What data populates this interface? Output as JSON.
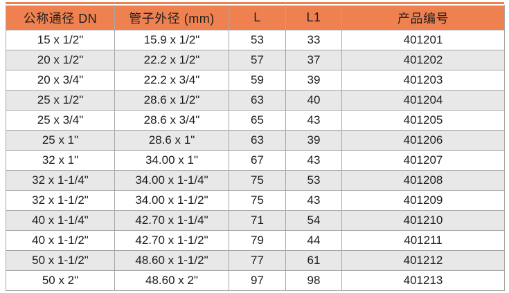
{
  "table": {
    "title_semantic": "pipe-fitting-spec-table",
    "columns": [
      "公称通径 DN",
      "管子外径 (mm)",
      "L",
      "L1",
      "产品编号"
    ],
    "rows": [
      [
        "15 x 1/2\"",
        "15.9 x 1/2\"",
        "53",
        "33",
        "401201"
      ],
      [
        "20 x 1/2\"",
        "22.2 x 1/2\"",
        "57",
        "37",
        "401202"
      ],
      [
        "20 x 3/4\"",
        "22.2 x 3/4\"",
        "59",
        "39",
        "401203"
      ],
      [
        "25 x 1/2\"",
        "28.6 x 1/2\"",
        "63",
        "40",
        "401204"
      ],
      [
        "25 x 3/4\"",
        "28.6 x 3/4\"",
        "65",
        "43",
        "401205"
      ],
      [
        "25 x 1\"",
        "28.6 x 1\"",
        "63",
        "39",
        "401206"
      ],
      [
        "32 x 1\"",
        "34.00 x 1\"",
        "67",
        "43",
        "401207"
      ],
      [
        "32 x 1-1/4\"",
        "34.00 x 1-1/4\"",
        "75",
        "53",
        "401208"
      ],
      [
        "32 x 1-1/2\"",
        "34.00 x 1-1/2\"",
        "75",
        "43",
        "401209"
      ],
      [
        "40 x 1-1/4\"",
        "42.70 x 1-1/4\"",
        "71",
        "54",
        "401210"
      ],
      [
        "40 x 1-1/2\"",
        "42.70 x 1-1/2\"",
        "79",
        "44",
        "401211"
      ],
      [
        "50 x 1-1/2\"",
        "48.60 x 1-1/2\"",
        "77",
        "61",
        "401212"
      ],
      [
        "50 x 2\"",
        "48.60 x 2\"",
        "97",
        "98",
        "401213"
      ]
    ]
  },
  "colors": {
    "header_bg": "#EF8150",
    "top_accent_bar": "#EF8150",
    "header_text": "#202020",
    "body_text": "#1D1D1D",
    "row_bg": "#FFFFFF",
    "row_alt_bg": "#E8E8E8",
    "grid_border": "#A6A6A6",
    "page_bg": "#FFFFFF"
  }
}
